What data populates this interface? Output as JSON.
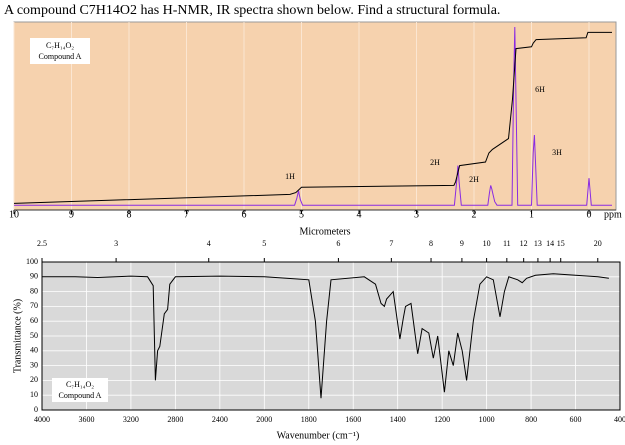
{
  "header": {
    "question": "A compound C7H14O2 has H-NMR, IR spectra shown below. Find a structural formula."
  },
  "chart_data": [
    {
      "type": "line",
      "sample_formula": "C₇H₁₄O₂",
      "sample_name": "Compound A",
      "xlabel": "ppm",
      "xlim": [
        10,
        -0.4
      ],
      "xticks": [
        10,
        9,
        8,
        7,
        6,
        5,
        4,
        3,
        2,
        1,
        0
      ],
      "ylim": [
        0,
        100
      ],
      "background": "#f6d2ae",
      "grid": true,
      "integrations": [
        "1H",
        "2H",
        "2H",
        "6H",
        "3H"
      ],
      "series": [
        {
          "color": "#8a2be2",
          "x": [
            10,
            5.12,
            5.08,
            5.06,
            5.05,
            5.04,
            5.02,
            4.98,
            2.34,
            2.3,
            2.28,
            2.26,
            2.22,
            1.76,
            1.73,
            1.71,
            1.69,
            1.67,
            1.64,
            1.6,
            1.34,
            1.31,
            1.29,
            1.27,
            1.24,
            1.0,
            0.97,
            0.95,
            0.93,
            0.9,
            0.04,
            0.0,
            -0.04,
            -0.4
          ],
          "values": [
            1,
            1,
            5,
            8,
            9,
            7,
            4,
            1,
            1,
            15,
            23,
            14,
            1,
            1,
            8,
            12,
            10,
            7,
            3,
            1,
            1,
            70,
            100,
            60,
            1,
            1,
            30,
            40,
            25,
            1,
            1,
            16,
            1,
            1
          ]
        },
        {
          "color": "#000000",
          "x": [
            10,
            5.2,
            5.1,
            5.0,
            2.35,
            2.32,
            2.25,
            1.8,
            1.74,
            1.68,
            1.4,
            1.33,
            1.27,
            1.0,
            0.97,
            0.92,
            0.05,
            0.02,
            -0.4
          ],
          "values": [
            2,
            7,
            8,
            11,
            12,
            14,
            23,
            25,
            30,
            32,
            38,
            60,
            88,
            89,
            91,
            93,
            94,
            97,
            97
          ]
        }
      ]
    },
    {
      "type": "line",
      "sample_formula": "C₇H₁₄O₂",
      "sample_name": "Compound A",
      "top_label": "Micrometers",
      "xlabel": "Wavenumber (cm⁻¹)",
      "ylabel": "Transmittance (%)",
      "xlim": [
        4000,
        400
      ],
      "scale_break": 2000,
      "xticks": [
        4000,
        3600,
        3200,
        2800,
        2400,
        2000,
        1800,
        1600,
        1400,
        1200,
        1000,
        800,
        600,
        400
      ],
      "top_ticks": [
        2.5,
        3,
        4,
        5,
        6,
        7,
        8,
        9,
        10,
        11,
        12,
        13,
        14,
        15,
        20
      ],
      "ylim": [
        0,
        100
      ],
      "yticks": [
        0,
        10,
        20,
        30,
        40,
        50,
        60,
        70,
        80,
        90,
        100
      ],
      "background": "#d9d9d9",
      "grid": true,
      "series": [
        {
          "color": "#000000",
          "x": [
            4000,
            3700,
            3500,
            3200,
            3050,
            3000,
            2980,
            2960,
            2940,
            2900,
            2870,
            2850,
            2800,
            2400,
            2000,
            1900,
            1800,
            1770,
            1745,
            1720,
            1700,
            1550,
            1500,
            1475,
            1460,
            1450,
            1420,
            1390,
            1375,
            1365,
            1340,
            1310,
            1290,
            1260,
            1240,
            1220,
            1190,
            1170,
            1150,
            1130,
            1110,
            1090,
            1060,
            1030,
            1000,
            970,
            940,
            920,
            900,
            860,
            840,
            820,
            780,
            700,
            600,
            500,
            450
          ],
          "values": [
            90,
            90,
            89.5,
            90.5,
            90,
            84,
            20,
            40,
            43,
            65,
            68,
            85,
            90,
            90.5,
            90,
            89,
            88,
            60,
            8,
            60,
            88,
            90,
            85,
            72,
            70,
            75,
            80,
            48,
            62,
            70,
            72,
            38,
            55,
            52,
            35,
            50,
            12,
            40,
            30,
            52,
            40,
            20,
            60,
            85,
            90,
            88,
            63,
            80,
            90,
            88,
            86,
            89,
            91,
            92,
            91,
            90,
            89
          ]
        }
      ]
    }
  ]
}
